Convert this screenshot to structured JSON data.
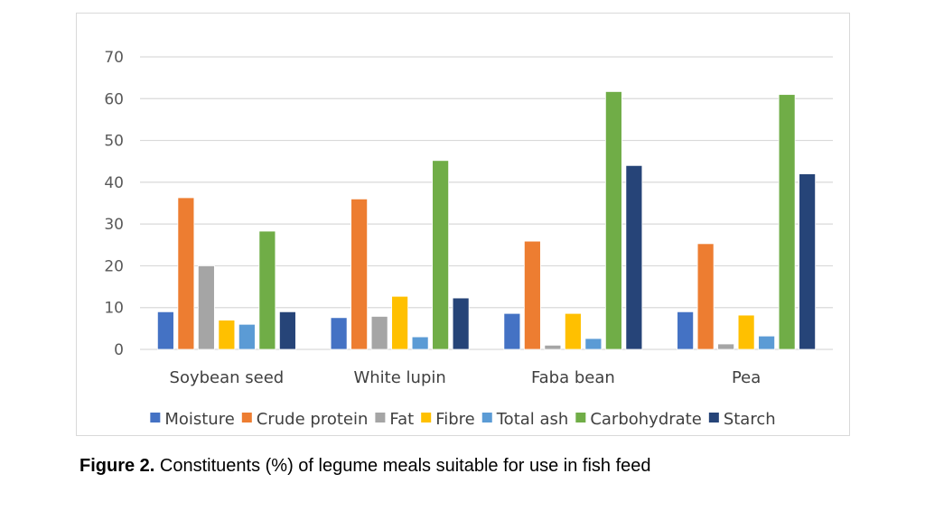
{
  "chart_data": {
    "type": "bar",
    "title": "",
    "xlabel": "",
    "ylabel": "",
    "ylim": [
      0,
      70
    ],
    "yticks": [
      0,
      10,
      20,
      30,
      40,
      50,
      60,
      70
    ],
    "grid": true,
    "legend_position": "bottom",
    "categories": [
      "Soybean seed",
      "White lupin",
      "Faba bean",
      "Pea"
    ],
    "series": [
      {
        "name": "Moisture",
        "color": "#4472c4",
        "values": [
          9.0,
          7.6,
          8.6,
          9.0
        ]
      },
      {
        "name": "Crude protein",
        "color": "#ed7d31",
        "values": [
          36.3,
          36.0,
          25.9,
          25.3
        ]
      },
      {
        "name": "Fat",
        "color": "#a5a5a5",
        "values": [
          20.0,
          7.9,
          1.0,
          1.3
        ]
      },
      {
        "name": "Fibre",
        "color": "#ffc000",
        "values": [
          7.0,
          12.7,
          8.6,
          8.2
        ]
      },
      {
        "name": "Total ash",
        "color": "#5b9bd5",
        "values": [
          6.0,
          3.0,
          2.6,
          3.2
        ]
      },
      {
        "name": "Carbohydrate",
        "color": "#70ad47",
        "values": [
          28.3,
          45.2,
          61.7,
          61.0
        ]
      },
      {
        "name": "Starch",
        "color": "#264478",
        "values": [
          9.0,
          12.3,
          44.0,
          42.0
        ]
      }
    ]
  },
  "caption": {
    "label": "Figure 2.",
    "text": " Constituents (%) of legume meals suitable for use in fish feed"
  }
}
